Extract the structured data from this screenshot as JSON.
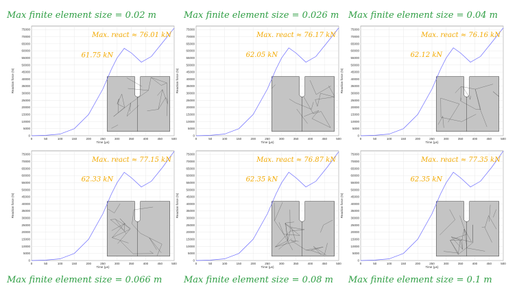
{
  "chart_data": [
    {
      "type": "line",
      "title": "Max finite element size = 0.02 m",
      "max_label": "Max. react ≈ 76.01 kN",
      "peak_label": "61.75 kN",
      "x": [
        0,
        50,
        100,
        150,
        200,
        250,
        280,
        300,
        325,
        350,
        385,
        420,
        460,
        500
      ],
      "values": [
        0,
        300,
        1200,
        5000,
        15000,
        33000,
        47000,
        55000,
        61750,
        58500,
        52000,
        56000,
        66000,
        76010
      ],
      "color": "#6b6bff",
      "xlim": [
        0,
        500
      ],
      "ylim": [
        0,
        77500
      ],
      "xticks": [
        0,
        50,
        100,
        150,
        200,
        250,
        300,
        350,
        400,
        450,
        500
      ],
      "yticks": [
        0,
        5000,
        10000,
        15000,
        20000,
        25000,
        30000,
        35000,
        40000,
        45000,
        50000,
        55000,
        60000,
        65000,
        70000,
        75000
      ],
      "xlabel": "Time (µs)",
      "ylabel": "Reaction force (N)",
      "grid": true
    },
    {
      "type": "line",
      "title": "Max finite element size = 0.026 m",
      "max_label": "Max. react ≈ 76.17 kN",
      "peak_label": "62.05 kN",
      "x": [
        0,
        50,
        100,
        150,
        200,
        250,
        280,
        300,
        325,
        350,
        385,
        420,
        460,
        500
      ],
      "values": [
        0,
        300,
        1200,
        5000,
        15000,
        33000,
        47000,
        55000,
        62050,
        58500,
        52000,
        56000,
        66000,
        76170
      ],
      "color": "#6b6bff",
      "xlim": [
        0,
        500
      ],
      "ylim": [
        0,
        77500
      ],
      "xticks": [
        0,
        50,
        100,
        150,
        200,
        250,
        300,
        350,
        400,
        450,
        500
      ],
      "yticks": [
        0,
        5000,
        10000,
        15000,
        20000,
        25000,
        30000,
        35000,
        40000,
        45000,
        50000,
        55000,
        60000,
        65000,
        70000,
        75000
      ],
      "xlabel": "Time (µs)",
      "ylabel": "Reaction force (N)",
      "grid": true
    },
    {
      "type": "line",
      "title": "Max finite element size = 0.04 m",
      "max_label": "Max. react ≈ 76.16 kN",
      "peak_label": "62.12 kN",
      "x": [
        0,
        50,
        100,
        150,
        200,
        250,
        280,
        300,
        325,
        350,
        385,
        420,
        460,
        500
      ],
      "values": [
        0,
        300,
        1200,
        5000,
        15000,
        33000,
        47000,
        55000,
        62120,
        58500,
        52000,
        56000,
        66000,
        76160
      ],
      "color": "#6b6bff",
      "xlim": [
        0,
        500
      ],
      "ylim": [
        0,
        77500
      ],
      "xticks": [
        0,
        50,
        100,
        150,
        200,
        250,
        300,
        350,
        400,
        450,
        500
      ],
      "yticks": [
        0,
        5000,
        10000,
        15000,
        20000,
        25000,
        30000,
        35000,
        40000,
        45000,
        50000,
        55000,
        60000,
        65000,
        70000,
        75000
      ],
      "xlabel": "Time (µs)",
      "ylabel": "Reaction force (N)",
      "grid": true
    },
    {
      "type": "line",
      "title": "Max finite element size = 0.066 m",
      "max_label": "Max. react ≈ 77.15 kN",
      "peak_label": "62.33 kN",
      "x": [
        0,
        50,
        100,
        150,
        200,
        250,
        280,
        300,
        325,
        350,
        385,
        420,
        460,
        500
      ],
      "values": [
        0,
        300,
        1200,
        5000,
        15000,
        33000,
        47000,
        55000,
        62330,
        58500,
        52000,
        56000,
        66000,
        77150
      ],
      "color": "#6b6bff",
      "xlim": [
        0,
        500
      ],
      "ylim": [
        0,
        77500
      ],
      "xticks": [
        0,
        50,
        100,
        150,
        200,
        250,
        300,
        350,
        400,
        450,
        500
      ],
      "yticks": [
        0,
        5000,
        10000,
        15000,
        20000,
        25000,
        30000,
        35000,
        40000,
        45000,
        50000,
        55000,
        60000,
        65000,
        70000,
        75000
      ],
      "xlabel": "Time (µs)",
      "ylabel": "Reaction force (N)",
      "grid": true
    },
    {
      "type": "line",
      "title": "Max finite element size = 0.08 m",
      "max_label": "Max. react ≈ 76.87 kN",
      "peak_label": "62.35 kN",
      "x": [
        0,
        50,
        100,
        150,
        200,
        250,
        280,
        300,
        325,
        350,
        385,
        420,
        460,
        500
      ],
      "values": [
        0,
        300,
        1200,
        5000,
        15000,
        33000,
        47000,
        55000,
        62350,
        58500,
        52000,
        56000,
        66000,
        76870
      ],
      "color": "#6b6bff",
      "xlim": [
        0,
        500
      ],
      "ylim": [
        0,
        77500
      ],
      "xticks": [
        0,
        50,
        100,
        150,
        200,
        250,
        300,
        350,
        400,
        450,
        500
      ],
      "yticks": [
        0,
        5000,
        10000,
        15000,
        20000,
        25000,
        30000,
        35000,
        40000,
        45000,
        50000,
        55000,
        60000,
        65000,
        70000,
        75000
      ],
      "xlabel": "Time (µs)",
      "ylabel": "Reaction force (N)",
      "grid": true
    },
    {
      "type": "line",
      "title": "Max finite element size = 0.1 m",
      "max_label": "Max. react ≈ 77.35 kN",
      "peak_label": "62.35 kN",
      "x": [
        0,
        50,
        100,
        150,
        200,
        250,
        280,
        300,
        325,
        350,
        385,
        420,
        460,
        500
      ],
      "values": [
        0,
        300,
        1200,
        5000,
        15000,
        33000,
        47000,
        55000,
        62350,
        58500,
        52000,
        56000,
        66000,
        77350
      ],
      "color": "#6b6bff",
      "xlim": [
        0,
        500
      ],
      "ylim": [
        0,
        77500
      ],
      "xticks": [
        0,
        50,
        100,
        150,
        200,
        250,
        300,
        350,
        400,
        450,
        500
      ],
      "yticks": [
        0,
        5000,
        10000,
        15000,
        20000,
        25000,
        30000,
        35000,
        40000,
        45000,
        50000,
        55000,
        60000,
        65000,
        70000,
        75000
      ],
      "xlabel": "Time (µs)",
      "ylabel": "Reaction force (N)",
      "grid": true
    }
  ]
}
